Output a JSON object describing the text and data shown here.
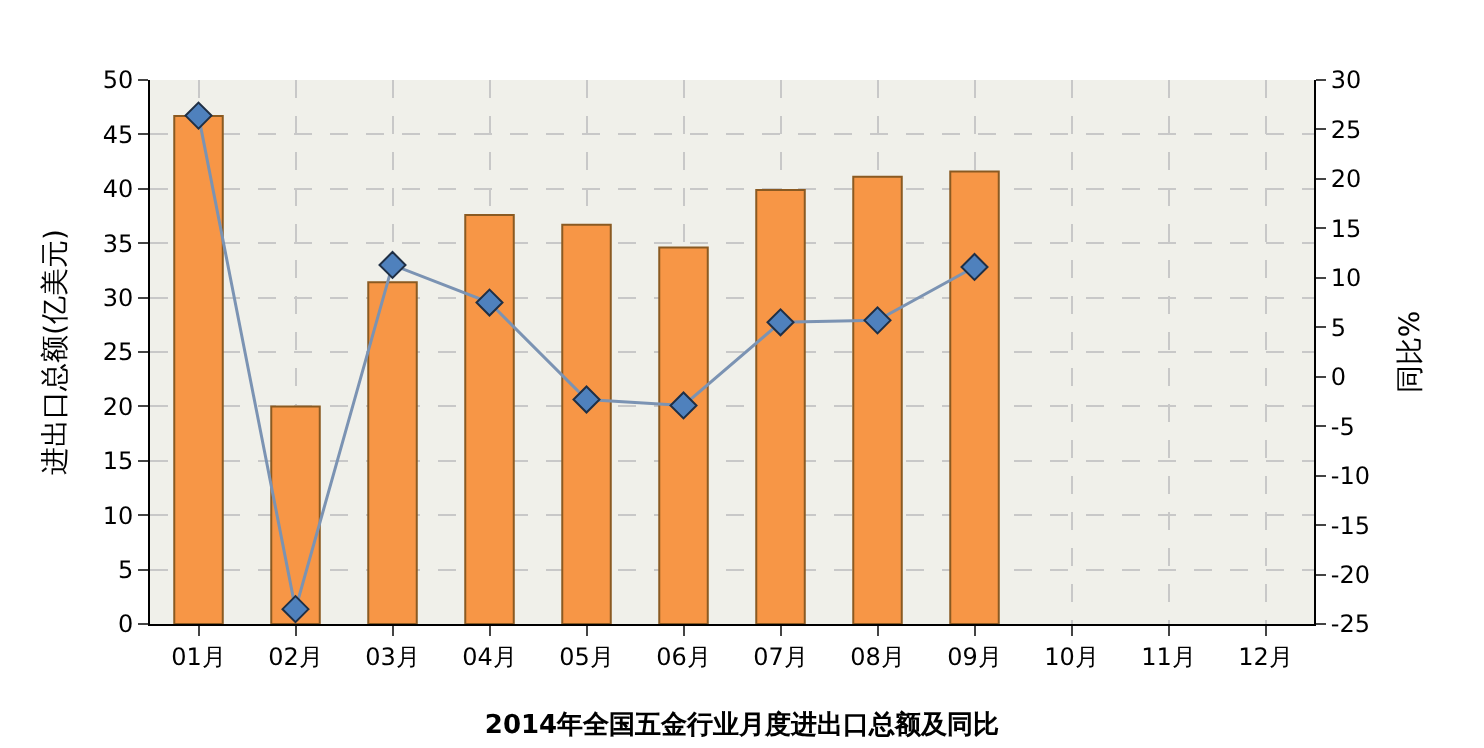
{
  "chart_data": {
    "type": "bar",
    "title": "2014年全国五金行业月度进出口总额及同比",
    "ylabel": "进出口总额(亿美元)",
    "y2label": "同比%",
    "categories": [
      "01月",
      "02月",
      "03月",
      "04月",
      "05月",
      "06月",
      "07月",
      "08月",
      "09月",
      "10月",
      "11月",
      "12月"
    ],
    "series": [
      {
        "color": "#f79646",
        "values": [
          46.7,
          20.0,
          31.4,
          37.6,
          36.7,
          34.6,
          39.9,
          41.1,
          41.6,
          null,
          null,
          null
        ]
      },
      {
        "type": "line",
        "axis": "y2",
        "color": "#4f81bd",
        "marker": "diamond",
        "values": [
          26.4,
          -23.5,
          11.3,
          7.5,
          -2.3,
          -2.9,
          5.5,
          5.7,
          11.1,
          null,
          null,
          null
        ]
      }
    ],
    "ylim": [
      0,
      50
    ],
    "yticks": [
      0,
      5,
      10,
      15,
      20,
      25,
      30,
      35,
      40,
      45,
      50
    ],
    "y2lim": [
      -25,
      30
    ],
    "y2ticks": [
      -25,
      -20,
      -15,
      -10,
      -5,
      0,
      5,
      10,
      15,
      20,
      25,
      30
    ],
    "grid": true,
    "legend": false
  }
}
